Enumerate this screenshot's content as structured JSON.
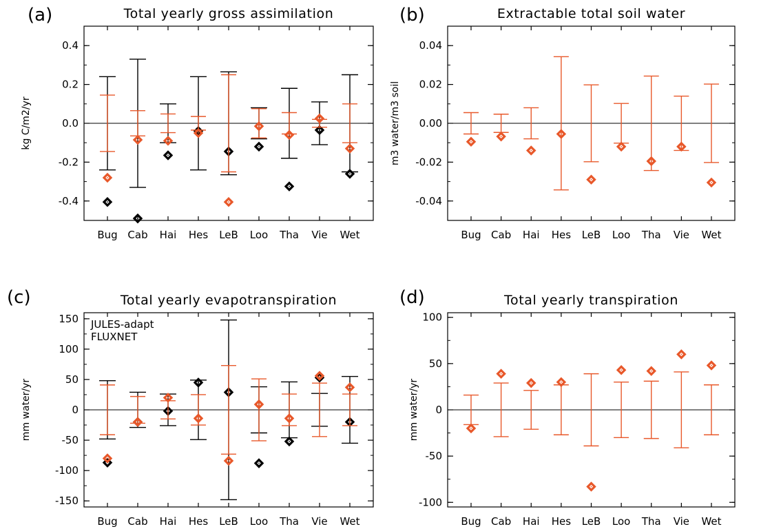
{
  "colors": {
    "model": "#E8582A",
    "obs": "#000000",
    "zero_line": "#000000"
  },
  "chart_data": [
    {
      "panel": "(a)",
      "type": "scatter",
      "title": "Total yearly gross assimilation",
      "ylabel": "kg C/m2/yr",
      "ylim": [
        -0.5,
        0.5
      ],
      "yticks": [
        -0.4,
        -0.2,
        0.0,
        0.2,
        0.4
      ],
      "ytick_labels": [
        "-0.4",
        "-0.2",
        "0.0",
        "0.2",
        "0.4"
      ],
      "categories": [
        "Bug",
        "Cab",
        "Hai",
        "Hes",
        "LeB",
        "Loo",
        "Tha",
        "Vie",
        "Wet"
      ],
      "series": [
        {
          "role": "observed",
          "values": [
            -0.405,
            -0.49,
            -0.165,
            -0.04,
            -0.145,
            -0.12,
            -0.325,
            -0.035,
            -0.26
          ],
          "error": [
            0.24,
            0.33,
            0.1,
            0.24,
            0.265,
            0.08,
            0.18,
            0.11,
            0.25
          ]
        },
        {
          "role": "model",
          "values": [
            -0.28,
            -0.085,
            -0.09,
            -0.05,
            -0.405,
            -0.015,
            -0.06,
            0.025,
            -0.13
          ],
          "error": [
            0.145,
            0.065,
            0.048,
            0.035,
            0.25,
            0.075,
            0.055,
            0.02,
            0.1
          ]
        }
      ]
    },
    {
      "panel": "(b)",
      "type": "scatter",
      "title": "Extractable total soil water",
      "ylabel": "m3 water/m3 soil",
      "ylim": [
        -0.05,
        0.05
      ],
      "yticks": [
        -0.04,
        -0.02,
        0.0,
        0.02,
        0.04
      ],
      "ytick_labels": [
        "-0.04",
        "-0.02",
        "0.00",
        "0.02",
        "0.04"
      ],
      "categories": [
        "Bug",
        "Cab",
        "Hai",
        "Hes",
        "LeB",
        "Loo",
        "Tha",
        "Vie",
        "Wet"
      ],
      "series": [
        {
          "role": "model",
          "values": [
            -0.0095,
            -0.0068,
            -0.014,
            -0.0055,
            -0.029,
            -0.012,
            -0.0195,
            -0.012,
            -0.0305
          ],
          "error": [
            0.0055,
            0.0047,
            0.008,
            0.0343,
            0.0198,
            0.0102,
            0.0243,
            0.014,
            0.0202
          ]
        }
      ]
    },
    {
      "panel": "(c)",
      "type": "scatter",
      "title": "Total yearly evapotranspiration",
      "ylabel": "mm water/yr",
      "ylim": [
        -160,
        160
      ],
      "yticks": [
        -150,
        -100,
        -50,
        0,
        50,
        100,
        150
      ],
      "ytick_labels": [
        "-150",
        "-100",
        "-50",
        "0",
        "50",
        "100",
        "150"
      ],
      "categories": [
        "Bug",
        "Cab",
        "Hai",
        "Hes",
        "LeB",
        "Loo",
        "Tha",
        "Vie",
        "Wet"
      ],
      "legend": [
        {
          "label": "JULES-adapt",
          "role": "model"
        },
        {
          "label": "FLUXNET",
          "role": "observed"
        }
      ],
      "series": [
        {
          "role": "observed",
          "values": [
            -87,
            -20,
            -2,
            45,
            29,
            -88,
            -52,
            53,
            -20
          ],
          "error": [
            48,
            29,
            26,
            49,
            148,
            38,
            46,
            27,
            55
          ]
        },
        {
          "role": "model",
          "values": [
            -80,
            -20,
            20,
            -14,
            -84,
            9,
            -14,
            56,
            37
          ],
          "error": [
            41,
            22,
            15,
            25,
            73,
            51,
            26,
            44,
            26
          ]
        }
      ]
    },
    {
      "panel": "(d)",
      "type": "scatter",
      "title": "Total yearly transpiration",
      "ylabel": "mm water/yr",
      "ylim": [
        -105,
        105
      ],
      "yticks": [
        -100,
        -50,
        0,
        50,
        100
      ],
      "ytick_labels": [
        "-100",
        "-50",
        "0",
        "50",
        "100"
      ],
      "categories": [
        "Bug",
        "Cab",
        "Hai",
        "Hes",
        "LeB",
        "Loo",
        "Tha",
        "Vie",
        "Wet"
      ],
      "series": [
        {
          "role": "model",
          "values": [
            -20,
            39,
            29,
            30,
            -83,
            43,
            42,
            60,
            48
          ],
          "error": [
            16,
            29,
            21,
            27,
            39,
            30,
            31,
            41,
            27
          ]
        }
      ]
    }
  ]
}
